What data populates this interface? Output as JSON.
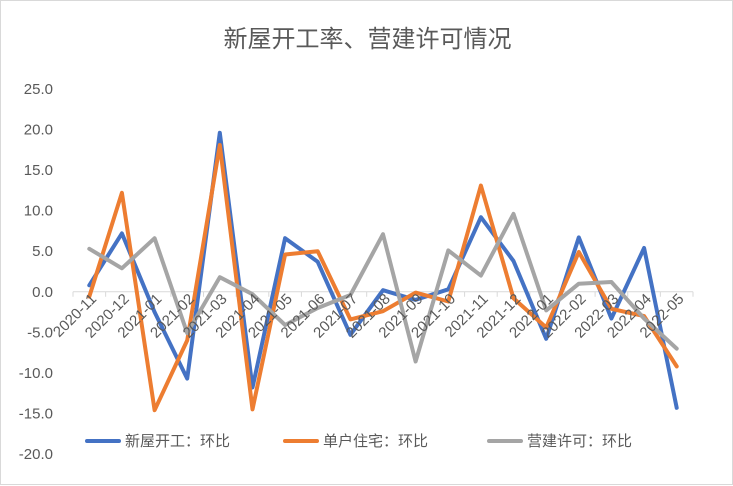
{
  "chart_data": {
    "type": "line",
    "title": "新屋开工率、营建许可情况",
    "categories": [
      "2020-11",
      "2020-12",
      "2021-01",
      "2021-02",
      "2021-03",
      "2021-04",
      "2021-05",
      "2021-06",
      "2021-07",
      "2021-08",
      "2021-09",
      "2021-10",
      "2021-11",
      "2021-12",
      "2022-01",
      "2022-02",
      "2022-03",
      "2022-04",
      "2022-05"
    ],
    "ylim": [
      -20,
      25
    ],
    "yticks": [
      "25.0",
      "20.0",
      "15.0",
      "10.0",
      "5.0",
      "0.0",
      "-5.0",
      "-10.0",
      "-15.0",
      "-20.0"
    ],
    "grid": false,
    "legend_position": "bottom",
    "series": [
      {
        "name": "新屋开工：环比",
        "color": "#4472c4",
        "values": [
          0.8,
          7.2,
          -2.5,
          -10.7,
          19.6,
          -11.8,
          6.6,
          3.7,
          -5.3,
          0.2,
          -1.0,
          0.3,
          9.2,
          3.8,
          -5.8,
          6.7,
          -3.3,
          5.4,
          -14.3
        ]
      },
      {
        "name": "单户住宅：环比",
        "color": "#ed7d31",
        "values": [
          -0.6,
          12.2,
          -14.6,
          -6.0,
          18.1,
          -14.5,
          4.6,
          5.0,
          -3.4,
          -2.4,
          -0.1,
          -1.2,
          13.1,
          -0.8,
          -4.4,
          4.9,
          -2.1,
          -3.0,
          -9.2
        ]
      },
      {
        "name": "营建许可：环比",
        "color": "#a5a5a5",
        "values": [
          5.3,
          2.9,
          6.6,
          -5.1,
          1.8,
          -0.3,
          -4.1,
          -2.0,
          -0.4,
          7.1,
          -8.6,
          5.1,
          2.0,
          9.6,
          -2.3,
          1.0,
          1.2,
          -3.3,
          -7.0
        ]
      }
    ]
  }
}
